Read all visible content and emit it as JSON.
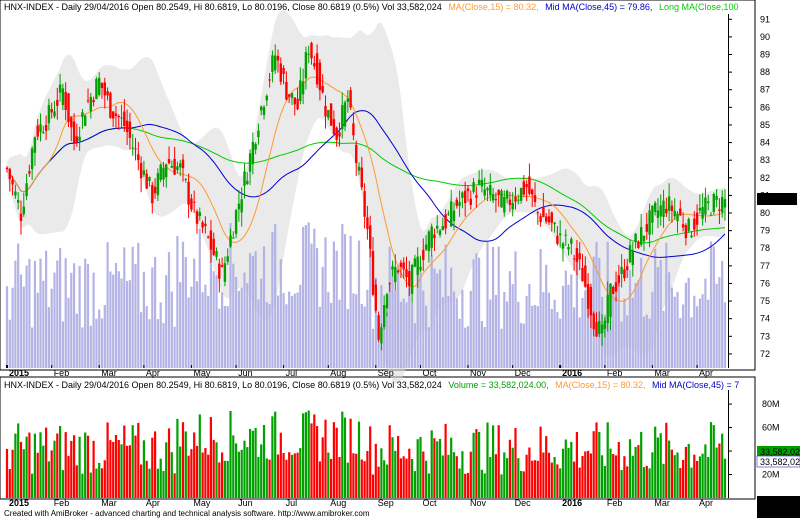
{
  "price_panel": {
    "symbol": "HNX-INDEX",
    "header_main": "HNX-INDEX - Daily 29/04/2016 Open 80.2549, Hi 80.6819, Lo 80.0196, Close 80.6819 (0.5%) Vol 33,582,024",
    "ma_short_label": "MA(Close,15) = 80.32,",
    "ma_mid_label": "Mid MA(Close,45) = 79.86,",
    "ma_long_label": "Long MA(Close,100",
    "last_price_label": "80.6819"
  },
  "volume_panel": {
    "header_main": "HNX-INDEX - Daily 29/04/2016 Open 80.2549, Hi 80.6819, Lo 80.0196, Close 80.6819 (0.5%) Vol 33,582,024",
    "volume_label": "Volume = 33,582,024.00,",
    "ma_short_label": "MA(Close,15) = 80.32,",
    "ma_mid_label": "Mid MA(Close,45) = 7",
    "vol_badge_1": "33,582,02",
    "vol_badge_2": "33,582,02",
    "bottom_badge_1": "80.6819",
    "bottom_badge_2": "80.6819"
  },
  "credit": "Created with AmiBroker - advanced charting and technical analysis software. http://www.amibroker.com",
  "colors": {
    "up": "#00a000",
    "down": "#ff0000",
    "ma_short": "#ff9933",
    "ma_mid": "#0000cc",
    "ma_long": "#00cc00",
    "volume_bg": "#b3b3e6",
    "bands": "#d9d9d9"
  },
  "chart_data": [
    {
      "type": "line",
      "title": "HNX-INDEX - Daily 29/04/2016",
      "y_axis": {
        "range": [
          71.2,
          91.3
        ],
        "ticks": [
          72,
          73,
          74,
          75,
          76,
          77,
          78,
          79,
          80,
          81,
          82,
          83,
          84,
          85,
          86,
          87,
          88,
          89,
          90,
          91
        ]
      },
      "x_ticks": [
        "2015",
        "Feb",
        "Mar",
        "Apr",
        "May",
        "Jun",
        "Jul",
        "Aug",
        "Sep",
        "Oct",
        "Nov",
        "Dec",
        "2016",
        "Feb",
        "Mar",
        "Apr"
      ],
      "series": [
        {
          "name": "Close",
          "points": [
            [
              0,
              82.5
            ],
            [
              5,
              80.0
            ],
            [
              10,
              84.5
            ],
            [
              15,
              85.5
            ],
            [
              20,
              87.0
            ],
            [
              24,
              84.0
            ],
            [
              28,
              86.0
            ],
            [
              33,
              87.5
            ],
            [
              37,
              86.0
            ],
            [
              42,
              85.0
            ],
            [
              47,
              83.0
            ],
            [
              52,
              81.0
            ],
            [
              57,
              83.0
            ],
            [
              62,
              82.5
            ],
            [
              67,
              80.0
            ],
            [
              72,
              78.5
            ],
            [
              77,
              76.5
            ],
            [
              82,
              80.0
            ],
            [
              86,
              82.5
            ],
            [
              91,
              86.0
            ],
            [
              96,
              89.0
            ],
            [
              100,
              87.0
            ],
            [
              104,
              86.0
            ],
            [
              108,
              89.5
            ],
            [
              111,
              88.0
            ],
            [
              114,
              86.0
            ],
            [
              118,
              84.5
            ],
            [
              122,
              86.5
            ],
            [
              125,
              83.0
            ],
            [
              129,
              79.0
            ],
            [
              133,
              73.0
            ],
            [
              136,
              76.0
            ],
            [
              140,
              77.0
            ],
            [
              144,
              76.0
            ],
            [
              148,
              77.5
            ],
            [
              152,
              79.0
            ],
            [
              157,
              79.5
            ],
            [
              161,
              80.5
            ],
            [
              165,
              81.0
            ],
            [
              169,
              81.5
            ],
            [
              173,
              81.0
            ],
            [
              178,
              80.5
            ],
            [
              182,
              81.0
            ],
            [
              186,
              81.5
            ],
            [
              190,
              80.0
            ],
            [
              194,
              79.5
            ],
            [
              198,
              78.5
            ],
            [
              202,
              78.0
            ],
            [
              206,
              76.5
            ],
            [
              210,
              74.0
            ],
            [
              213,
              73.0
            ],
            [
              216,
              75.5
            ],
            [
              220,
              76.5
            ],
            [
              224,
              78.0
            ],
            [
              228,
              79.0
            ],
            [
              232,
              80.0
            ],
            [
              236,
              80.5
            ],
            [
              240,
              80.0
            ],
            [
              244,
              79.0
            ],
            [
              248,
              80.0
            ],
            [
              252,
              80.5
            ],
            [
              256,
              80.68
            ]
          ]
        },
        {
          "name": "MA(Close,15)"
        },
        {
          "name": "Mid MA(Close,45)"
        },
        {
          "name": "Long MA(Close,100"
        }
      ]
    },
    {
      "type": "bar",
      "title": "HNX-INDEX - Daily 29/04/2016",
      "y_axis": {
        "range": [
          0,
          92
        ],
        "ticks": [
          "20M",
          "40M",
          "60M",
          "80M"
        ]
      },
      "x_ticks": [
        "2015",
        "Feb",
        "Mar",
        "Apr",
        "May",
        "Jun",
        "Jul",
        "Aug",
        "Sep",
        "Oct",
        "Nov",
        "Dec",
        "2016",
        "Feb",
        "Mar",
        "Apr"
      ],
      "series": [
        {
          "name": "Volume",
          "last_value": 33582024
        }
      ]
    }
  ]
}
